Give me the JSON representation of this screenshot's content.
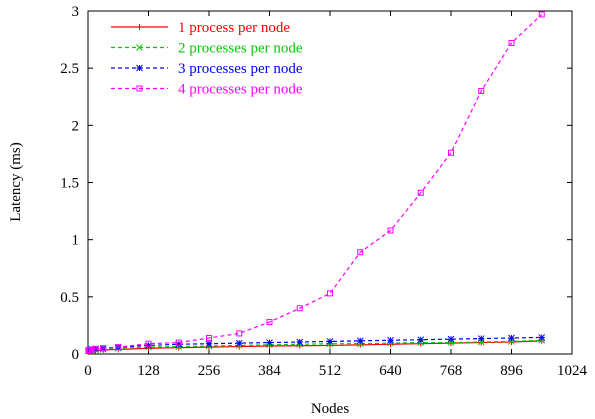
{
  "chart_data": {
    "type": "line",
    "xlabel": "Nodes",
    "ylabel": "Latency (ms)",
    "xlim": [
      0,
      1024
    ],
    "ylim": [
      0,
      3
    ],
    "xticks": [
      0,
      128,
      256,
      384,
      512,
      640,
      768,
      896,
      1024
    ],
    "yticks": [
      0,
      0.5,
      1,
      1.5,
      2,
      2.5,
      3
    ],
    "xtick_labels": [
      "0",
      "128",
      "256",
      "384",
      "512",
      "640",
      "768",
      "896",
      "1024"
    ],
    "ytick_labels": [
      "0",
      "0.5",
      "1",
      "1.5",
      "2",
      "2.5",
      "3"
    ],
    "grid": false,
    "legend_position": "top-left",
    "x": [
      1,
      2,
      4,
      8,
      16,
      32,
      64,
      128,
      192,
      256,
      320,
      384,
      448,
      512,
      576,
      640,
      704,
      768,
      832,
      896,
      960
    ],
    "series": [
      {
        "name": "1 process per node",
        "color": "#ff0000",
        "dash": "solid",
        "marker": "plus",
        "values": [
          0.02,
          0.02,
          0.025,
          0.03,
          0.03,
          0.035,
          0.04,
          0.05,
          0.055,
          0.06,
          0.065,
          0.07,
          0.072,
          0.075,
          0.08,
          0.085,
          0.09,
          0.095,
          0.1,
          0.105,
          0.115
        ]
      },
      {
        "name": "2 processes per node",
        "color": "#00cc00",
        "dash": "dashed",
        "marker": "cross",
        "values": [
          0.025,
          0.03,
          0.03,
          0.035,
          0.035,
          0.04,
          0.05,
          0.06,
          0.065,
          0.07,
          0.075,
          0.08,
          0.085,
          0.09,
          0.09,
          0.095,
          0.1,
          0.1,
          0.105,
          0.11,
          0.12
        ]
      },
      {
        "name": "3 processes per node",
        "color": "#0000ff",
        "dash": "dashed",
        "marker": "star",
        "values": [
          0.03,
          0.03,
          0.035,
          0.04,
          0.045,
          0.05,
          0.06,
          0.075,
          0.085,
          0.09,
          0.095,
          0.1,
          0.105,
          0.11,
          0.115,
          0.12,
          0.125,
          0.13,
          0.135,
          0.14,
          0.145
        ]
      },
      {
        "name": "4 processes per node",
        "color": "#ff00ff",
        "dash": "dashed",
        "marker": "square",
        "values": [
          0.03,
          0.03,
          0.035,
          0.04,
          0.045,
          0.05,
          0.06,
          0.09,
          0.1,
          0.14,
          0.18,
          0.28,
          0.4,
          0.53,
          0.89,
          1.08,
          1.41,
          1.76,
          2.3,
          2.72,
          2.97
        ]
      }
    ]
  }
}
